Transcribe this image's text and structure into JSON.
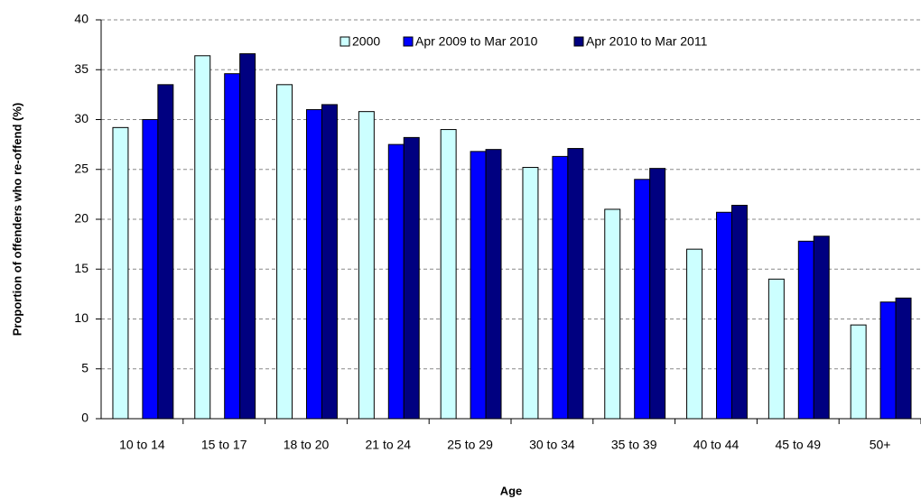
{
  "chart_data": {
    "type": "bar",
    "x_label": "Age",
    "y_label": "Proportion of offenders who re-offend (%)",
    "categories": [
      "10 to 14",
      "15 to 17",
      "18 to 20",
      "21 to 24",
      "25 to 29",
      "30 to 34",
      "35 to 39",
      "40 to 44",
      "45 to 49",
      "50+"
    ],
    "series": [
      {
        "name": "2000",
        "color": "#ccffff",
        "values": [
          29.2,
          36.4,
          33.5,
          30.8,
          29.0,
          25.2,
          21.0,
          17.0,
          14.0,
          9.4
        ]
      },
      {
        "name": "Apr 2009 to Mar 2010",
        "color": "#0000ff",
        "values": [
          30.0,
          34.6,
          31.0,
          27.5,
          26.8,
          26.3,
          24.0,
          20.7,
          17.8,
          11.7
        ]
      },
      {
        "name": "Apr 2010 to Mar 2011",
        "color": "#000080",
        "values": [
          33.5,
          36.6,
          31.5,
          28.2,
          27.0,
          27.1,
          25.1,
          21.4,
          18.3,
          12.1
        ]
      }
    ],
    "ylim": [
      0,
      40
    ],
    "yticks": [
      0,
      5,
      10,
      15,
      20,
      25,
      30,
      35,
      40
    ],
    "grid": true,
    "legend": "top"
  }
}
